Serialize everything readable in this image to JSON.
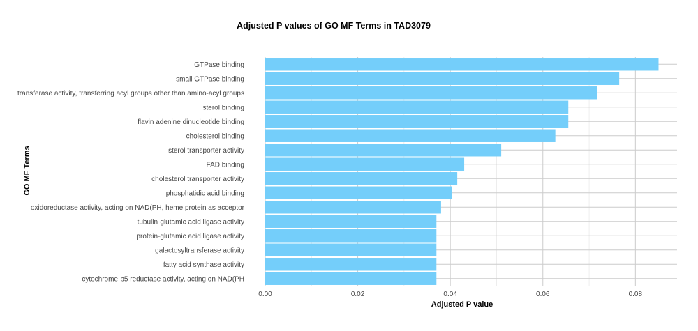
{
  "chart_data": {
    "type": "bar",
    "orientation": "horizontal",
    "title": "Adjusted P values of GO MF Terms in TAD3079",
    "xlabel": "Adjusted P value",
    "ylabel": "GO MF Terms",
    "xlim": [
      0.0,
      0.089
    ],
    "xticks": [
      "0.00",
      "0.02",
      "0.04",
      "0.06",
      "0.08"
    ],
    "xtick_values": [
      0.0,
      0.02,
      0.04,
      0.06,
      0.08
    ],
    "grid": true,
    "legend": "none",
    "bar_color": "#74CEFA",
    "categories": [
      "GTPase binding",
      "small GTPase binding",
      "transferase activity, transferring acyl groups other than amino-acyl groups",
      "sterol binding",
      "flavin adenine dinucleotide binding",
      "cholesterol binding",
      "sterol transporter activity",
      "FAD binding",
      "cholesterol transporter activity",
      "phosphatidic acid binding",
      "oxidoreductase activity, acting on NAD(PH, heme protein as acceptor",
      "tubulin-glutamic acid ligase activity",
      "protein-glutamic acid ligase activity",
      "galactosyltransferase activity",
      "fatty acid synthase activity",
      "cytochrome-b5 reductase activity, acting on NAD(PH"
    ],
    "values": [
      0.085,
      0.0765,
      0.0718,
      0.0655,
      0.0655,
      0.0627,
      0.051,
      0.043,
      0.0415,
      0.0403,
      0.038,
      0.037,
      0.037,
      0.037,
      0.037,
      0.037
    ]
  }
}
